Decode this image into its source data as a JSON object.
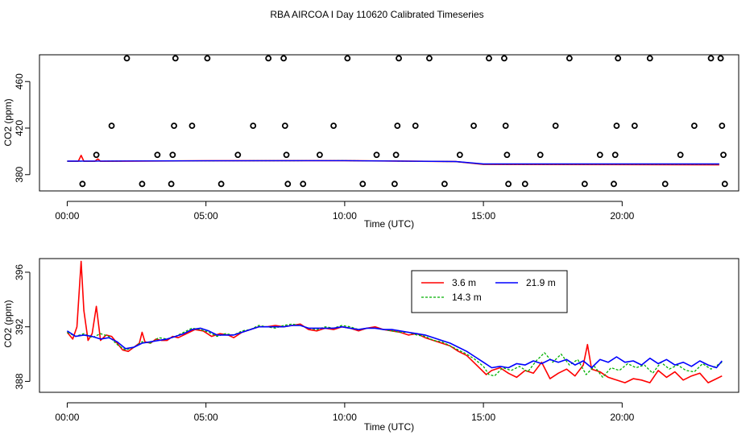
{
  "title": "RBA AIRCOA I  Day 110620  Calibrated Timeseries",
  "chart_data": [
    {
      "type": "scatter",
      "xlabel": "Time (UTC)",
      "ylabel": "CO2 (ppm)",
      "x_ticks": [
        "00:00",
        "05:00",
        "10:00",
        "15:00",
        "20:00"
      ],
      "x_tick_values": [
        0,
        5,
        10,
        15,
        20
      ],
      "xlim": [
        -1,
        24.2
      ],
      "ylim": [
        366,
        483
      ],
      "y_ticks": [
        380,
        420,
        460
      ],
      "y_tick_labels": [
        "380",
        "420",
        "460"
      ],
      "grid": false,
      "calibration_points": [
        {
          "x": 0.55,
          "y": 372
        },
        {
          "x": 1.05,
          "y": 397
        },
        {
          "x": 1.6,
          "y": 422
        },
        {
          "x": 2.15,
          "y": 480
        },
        {
          "x": 2.7,
          "y": 372
        },
        {
          "x": 3.25,
          "y": 397
        },
        {
          "x": 3.75,
          "y": 372
        },
        {
          "x": 3.8,
          "y": 397
        },
        {
          "x": 3.85,
          "y": 422
        },
        {
          "x": 3.9,
          "y": 480
        },
        {
          "x": 4.5,
          "y": 422
        },
        {
          "x": 5.05,
          "y": 480
        },
        {
          "x": 5.55,
          "y": 372
        },
        {
          "x": 6.15,
          "y": 397
        },
        {
          "x": 6.7,
          "y": 422
        },
        {
          "x": 7.25,
          "y": 480
        },
        {
          "x": 7.8,
          "y": 480
        },
        {
          "x": 7.85,
          "y": 422
        },
        {
          "x": 7.9,
          "y": 397
        },
        {
          "x": 7.95,
          "y": 372
        },
        {
          "x": 8.5,
          "y": 372
        },
        {
          "x": 9.1,
          "y": 397
        },
        {
          "x": 9.6,
          "y": 422
        },
        {
          "x": 10.1,
          "y": 480
        },
        {
          "x": 10.65,
          "y": 372
        },
        {
          "x": 11.15,
          "y": 397
        },
        {
          "x": 11.8,
          "y": 372
        },
        {
          "x": 11.85,
          "y": 397
        },
        {
          "x": 11.9,
          "y": 422
        },
        {
          "x": 11.95,
          "y": 480
        },
        {
          "x": 12.55,
          "y": 422
        },
        {
          "x": 13.05,
          "y": 480
        },
        {
          "x": 13.6,
          "y": 372
        },
        {
          "x": 14.15,
          "y": 397
        },
        {
          "x": 14.65,
          "y": 422
        },
        {
          "x": 15.2,
          "y": 480
        },
        {
          "x": 15.75,
          "y": 480
        },
        {
          "x": 15.8,
          "y": 422
        },
        {
          "x": 15.85,
          "y": 397
        },
        {
          "x": 15.9,
          "y": 372
        },
        {
          "x": 16.5,
          "y": 372
        },
        {
          "x": 17.05,
          "y": 397
        },
        {
          "x": 17.6,
          "y": 422
        },
        {
          "x": 18.1,
          "y": 480
        },
        {
          "x": 18.65,
          "y": 372
        },
        {
          "x": 19.2,
          "y": 397
        },
        {
          "x": 19.7,
          "y": 372
        },
        {
          "x": 19.75,
          "y": 397
        },
        {
          "x": 19.8,
          "y": 422
        },
        {
          "x": 19.85,
          "y": 480
        },
        {
          "x": 20.45,
          "y": 422
        },
        {
          "x": 21.0,
          "y": 480
        },
        {
          "x": 21.55,
          "y": 372
        },
        {
          "x": 22.1,
          "y": 397
        },
        {
          "x": 22.6,
          "y": 422
        },
        {
          "x": 23.2,
          "y": 480
        },
        {
          "x": 23.55,
          "y": 480
        },
        {
          "x": 23.6,
          "y": 422
        },
        {
          "x": 23.65,
          "y": 397
        },
        {
          "x": 23.7,
          "y": 372
        }
      ],
      "series": [
        {
          "color": "#ff0000",
          "width": 1.6,
          "x": [
            0,
            0.4,
            0.5,
            0.6,
            1.0,
            1.1,
            1.2,
            5.0,
            10.0,
            14.0,
            15.0,
            23.5
          ],
          "y": [
            391.5,
            391.5,
            396.5,
            391.5,
            391.5,
            393.5,
            391.5,
            391.9,
            392.0,
            391.2,
            388.8,
            388.4
          ]
        },
        {
          "color": "#00b000",
          "width": 1.2,
          "dash": "3,2",
          "x": [
            0,
            5.0,
            10.0,
            14.0,
            15.0,
            23.5
          ],
          "y": [
            391.5,
            391.9,
            392.0,
            391.2,
            389.0,
            389.0
          ]
        },
        {
          "color": "#0000ff",
          "width": 1.4,
          "x": [
            0,
            5.0,
            10.0,
            14.0,
            15.0,
            23.5
          ],
          "y": [
            391.6,
            391.9,
            392.0,
            391.3,
            389.2,
            389.2
          ]
        }
      ]
    },
    {
      "type": "line",
      "xlabel": "Time (UTC)",
      "ylabel": "CO2 (ppm)",
      "x_ticks": [
        "00:00",
        "05:00",
        "10:00",
        "15:00",
        "20:00"
      ],
      "x_tick_values": [
        0,
        5,
        10,
        15,
        20
      ],
      "xlim": [
        -1,
        24.2
      ],
      "ylim": [
        387.2,
        397.0
      ],
      "y_ticks": [
        388,
        392,
        396
      ],
      "y_tick_labels": [
        "388",
        "392",
        "396"
      ],
      "grid": false,
      "legend_position": "top-right",
      "series": [
        {
          "name": "3.6 m",
          "color": "#ff0000",
          "width": 1.6,
          "x": [
            0,
            0.2,
            0.35,
            0.5,
            0.6,
            0.75,
            0.9,
            1.05,
            1.2,
            1.4,
            1.6,
            1.8,
            2.0,
            2.2,
            2.4,
            2.6,
            2.7,
            2.8,
            3.0,
            3.2,
            3.4,
            3.6,
            3.8,
            4.0,
            4.3,
            4.6,
            4.9,
            5.2,
            5.5,
            5.8,
            6.0,
            6.3,
            6.6,
            6.9,
            7.2,
            7.5,
            7.8,
            8.1,
            8.4,
            8.7,
            9.0,
            9.3,
            9.6,
            9.9,
            10.2,
            10.5,
            10.8,
            11.1,
            11.4,
            11.7,
            12.0,
            12.3,
            12.6,
            12.9,
            13.2,
            13.5,
            13.8,
            14.1,
            14.4,
            14.7,
            14.9,
            15.1,
            15.3,
            15.6,
            15.9,
            16.2,
            16.5,
            16.8,
            17.1,
            17.4,
            17.7,
            18.0,
            18.3,
            18.6,
            18.75,
            18.9,
            19.2,
            19.5,
            19.8,
            20.1,
            20.4,
            20.7,
            21.0,
            21.3,
            21.6,
            21.9,
            22.2,
            22.5,
            22.8,
            23.1,
            23.4,
            23.6
          ],
          "y": [
            391.6,
            391.1,
            392.0,
            396.8,
            393.2,
            391.0,
            391.5,
            393.5,
            391.0,
            391.4,
            391.3,
            390.8,
            390.3,
            390.2,
            390.5,
            390.8,
            391.6,
            390.9,
            390.8,
            391.1,
            391.0,
            391.0,
            391.3,
            391.2,
            391.5,
            391.8,
            391.7,
            391.3,
            391.5,
            391.4,
            391.2,
            391.6,
            391.8,
            392.0,
            392.0,
            392.1,
            392.0,
            392.1,
            392.2,
            391.8,
            391.7,
            391.9,
            391.8,
            392.0,
            391.9,
            391.7,
            391.9,
            392.0,
            391.8,
            391.7,
            391.6,
            391.4,
            391.5,
            391.2,
            391.0,
            390.8,
            390.6,
            390.2,
            389.9,
            389.3,
            388.9,
            388.5,
            388.8,
            389.0,
            388.6,
            388.3,
            388.8,
            388.6,
            389.4,
            388.2,
            388.6,
            388.9,
            388.4,
            389.2,
            390.7,
            388.9,
            388.7,
            388.3,
            388.1,
            387.9,
            388.2,
            388.1,
            387.9,
            388.8,
            388.3,
            388.7,
            388.1,
            388.4,
            388.6,
            387.9,
            388.2,
            388.4
          ]
        },
        {
          "name": "14.3 m",
          "color": "#00b000",
          "width": 1.3,
          "dash": "3,2",
          "x": [
            0,
            0.3,
            0.6,
            0.9,
            1.2,
            1.5,
            1.8,
            2.1,
            2.4,
            2.7,
            3.0,
            3.3,
            3.6,
            3.9,
            4.2,
            4.5,
            4.8,
            5.1,
            5.4,
            5.7,
            6.0,
            6.3,
            6.6,
            6.9,
            7.2,
            7.5,
            7.8,
            8.1,
            8.4,
            8.7,
            9.0,
            9.3,
            9.6,
            9.9,
            10.2,
            10.5,
            10.8,
            11.1,
            11.4,
            11.7,
            12.0,
            12.3,
            12.6,
            12.9,
            13.2,
            13.5,
            13.8,
            14.1,
            14.4,
            14.7,
            15.0,
            15.2,
            15.4,
            15.7,
            16.0,
            16.3,
            16.6,
            16.9,
            17.2,
            17.5,
            17.8,
            18.1,
            18.4,
            18.7,
            19.0,
            19.3,
            19.6,
            19.9,
            20.2,
            20.5,
            20.8,
            21.1,
            21.4,
            21.7,
            22.0,
            22.3,
            22.6,
            22.9,
            23.2,
            23.6
          ],
          "y": [
            391.6,
            391.3,
            391.5,
            391.2,
            391.5,
            391.3,
            390.7,
            390.3,
            390.5,
            390.9,
            390.8,
            391.2,
            391.1,
            391.3,
            391.6,
            391.9,
            391.8,
            391.6,
            391.3,
            391.5,
            391.4,
            391.7,
            391.8,
            392.1,
            392.0,
            391.9,
            392.1,
            392.2,
            392.1,
            391.9,
            391.8,
            392.0,
            391.9,
            392.1,
            392.0,
            391.8,
            391.9,
            391.9,
            391.8,
            391.7,
            391.6,
            391.6,
            391.4,
            391.3,
            391.0,
            390.9,
            390.6,
            390.3,
            390.0,
            389.6,
            389.1,
            388.5,
            388.4,
            389.0,
            388.8,
            389.1,
            388.7,
            389.5,
            390.1,
            389.4,
            390.0,
            389.2,
            389.6,
            388.5,
            389.1,
            388.3,
            389.0,
            388.8,
            389.3,
            389.0,
            389.2,
            388.6,
            389.4,
            388.9,
            389.2,
            388.8,
            388.7,
            389.3,
            388.9,
            389.4
          ]
        },
        {
          "name": "21.9 m",
          "color": "#0000ff",
          "width": 1.6,
          "x": [
            0,
            0.3,
            0.6,
            0.9,
            1.2,
            1.5,
            1.8,
            2.1,
            2.4,
            2.7,
            3.0,
            3.3,
            3.6,
            3.9,
            4.2,
            4.5,
            4.8,
            5.1,
            5.4,
            5.7,
            6.0,
            6.3,
            6.6,
            6.9,
            7.2,
            7.5,
            7.8,
            8.1,
            8.4,
            8.7,
            9.0,
            9.3,
            9.6,
            9.9,
            10.2,
            10.5,
            10.8,
            11.1,
            11.4,
            11.7,
            12.0,
            12.3,
            12.6,
            12.9,
            13.2,
            13.5,
            13.8,
            14.1,
            14.4,
            14.7,
            15.0,
            15.3,
            15.6,
            15.9,
            16.2,
            16.5,
            16.8,
            17.1,
            17.4,
            17.7,
            18.0,
            18.3,
            18.6,
            18.9,
            19.2,
            19.5,
            19.8,
            20.1,
            20.4,
            20.7,
            21.0,
            21.3,
            21.6,
            21.9,
            22.2,
            22.5,
            22.8,
            23.1,
            23.4,
            23.6
          ],
          "y": [
            391.7,
            391.3,
            391.4,
            391.3,
            391.1,
            391.2,
            390.9,
            390.4,
            390.5,
            390.8,
            390.9,
            391.0,
            391.1,
            391.3,
            391.5,
            391.8,
            391.9,
            391.7,
            391.4,
            391.4,
            391.4,
            391.6,
            391.8,
            392.0,
            392.0,
            392.0,
            392.0,
            392.1,
            392.1,
            391.9,
            391.9,
            391.9,
            391.9,
            392.0,
            391.9,
            391.8,
            391.9,
            391.9,
            391.8,
            391.8,
            391.7,
            391.6,
            391.5,
            391.4,
            391.2,
            391.0,
            390.8,
            390.5,
            390.2,
            389.8,
            389.4,
            389.0,
            389.1,
            389.0,
            389.3,
            389.2,
            389.5,
            389.3,
            389.6,
            389.4,
            389.6,
            389.2,
            389.5,
            389.0,
            389.6,
            389.4,
            389.8,
            389.4,
            389.5,
            389.2,
            389.7,
            389.3,
            389.6,
            389.2,
            389.4,
            389.1,
            389.5,
            389.2,
            389.0,
            389.5
          ]
        }
      ]
    }
  ]
}
